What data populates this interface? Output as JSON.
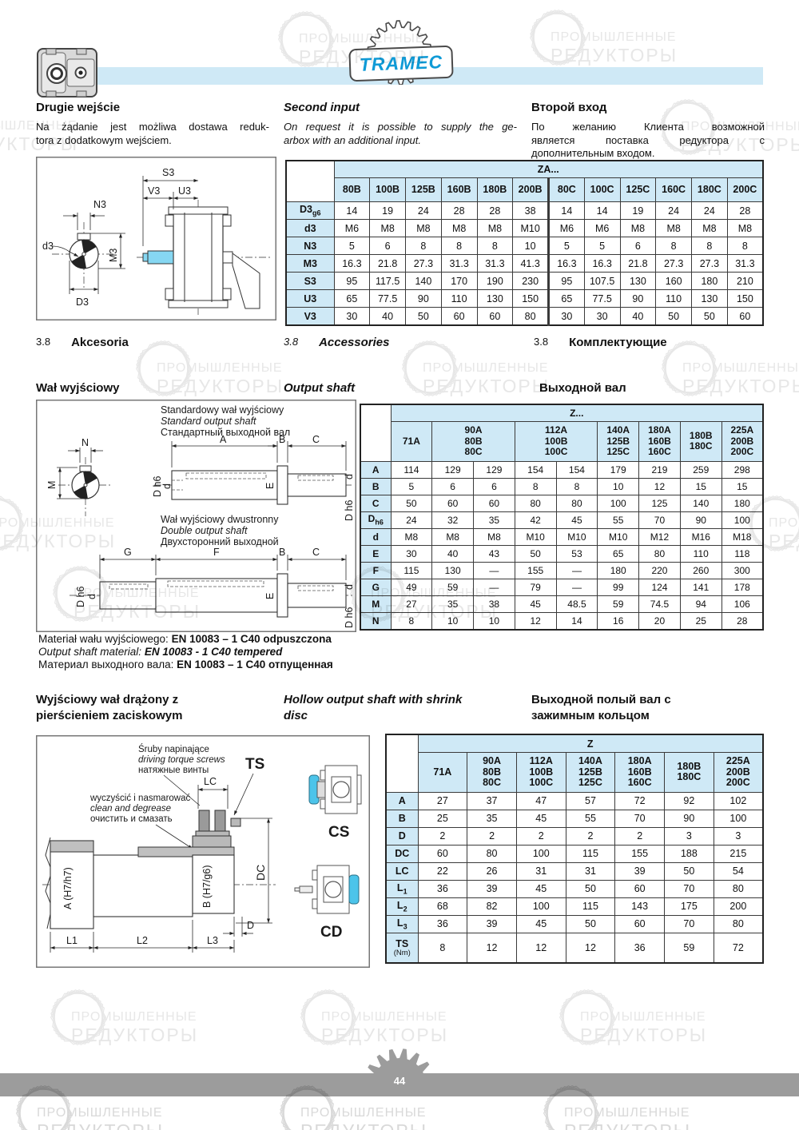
{
  "brand": {
    "logo_text": "TRAMEC"
  },
  "watermark": {
    "line1": "ПРОМЫШЛЕННЫЕ",
    "line2": "РЕДУКТОРЫ"
  },
  "footer": {
    "page_number": "44"
  },
  "intro": {
    "pl": {
      "title": "Drugie wejście",
      "lines": [
        "Na żądanie jest możliwa dostawa reduk-",
        "tora z dodatkowym wejściem."
      ]
    },
    "en": {
      "title": "Second input",
      "lines": [
        "On request it is possible to supply the ge-",
        "arbox with an additional input."
      ]
    },
    "ru": {
      "title": "Второй вход",
      "lines": [
        "По желанию Клиента возможной",
        "является поставка редуктора с",
        "дополнительным входом."
      ]
    }
  },
  "accessories_section": {
    "number": "3.8",
    "pl": "Akcesoria",
    "en": "Accessories",
    "ru": "Комплектующие"
  },
  "output_shaft_section": {
    "pl": "Wał wyjściowy",
    "en": "Output shaft",
    "ru": "Выходной вал"
  },
  "hollow_section": {
    "pl": [
      "Wyjściowy wał drążony z",
      "pierścieniem zaciskowym"
    ],
    "en": [
      "Hollow output shaft with shrink",
      "disc"
    ],
    "ru": [
      "Выходной полый вал с",
      "зажимным кольцом"
    ]
  },
  "material": {
    "pl": {
      "prefix": "Materiał wału wyjściowego: ",
      "value": "EN 10083 – 1 C40 odpuszczona"
    },
    "en": {
      "prefix": "Output shaft material: ",
      "value": "EN 10083 - 1 C40 tempered"
    },
    "ru": {
      "prefix": "Материал выходного вала: ",
      "value": "EN 10083 – 1 C40 отпущенная"
    }
  },
  "drawing_second_input": {
    "labels": {
      "s3": "S3",
      "v3": "V3",
      "u3": "U3",
      "n3": "N3",
      "d3": "d3",
      "m3": "M3",
      "D3cap": "D3"
    }
  },
  "drawing_output_shaft": {
    "standard_caption": [
      "Standardowy wał wyjściowy",
      "Standard output shaft",
      "Стандартный выходной вал"
    ],
    "double_caption": [
      "Wał wyjściowy dwustronny",
      "Double output shaft",
      "Двухсторонний выходной"
    ],
    "labels": {
      "n": "N",
      "m": "M",
      "a": "A",
      "b": "B",
      "c": "C",
      "dh6": "D h6",
      "d": "d",
      "e": "E",
      "f": "F",
      "g": "G"
    }
  },
  "drawing_hollow": {
    "screw_note": [
      "Śruby napinające",
      "driving torque screws",
      "натяжные винты"
    ],
    "clean_note": [
      "wyczyścić i nasmarować",
      "clean and degrease",
      "очистить и смазать"
    ],
    "labels": {
      "ts": "TS",
      "lc": "LC",
      "dc": "DC",
      "d": "D",
      "a": "A (H7/h7)",
      "b": "B (H7/g6)",
      "l1": "L1",
      "l2": "L2",
      "l3": "L3",
      "cs": "CS",
      "cd": "CD"
    }
  },
  "tables": {
    "za": {
      "title": "ZA...",
      "columns": [
        {
          "lines": [
            "80B"
          ]
        },
        {
          "lines": [
            "100B"
          ]
        },
        {
          "lines": [
            "125B"
          ]
        },
        {
          "lines": [
            "160B"
          ]
        },
        {
          "lines": [
            "180B"
          ]
        },
        {
          "lines": [
            "200B"
          ]
        },
        {
          "lines": [
            "80C"
          ],
          "thick": true
        },
        {
          "lines": [
            "100C"
          ]
        },
        {
          "lines": [
            "125C"
          ]
        },
        {
          "lines": [
            "160C"
          ]
        },
        {
          "lines": [
            "180C"
          ]
        },
        {
          "lines": [
            "200C"
          ]
        }
      ],
      "rows": [
        {
          "label": "D3",
          "sub": "g6",
          "values": [
            "14",
            "19",
            "24",
            "28",
            "28",
            "38",
            "14",
            "14",
            "19",
            "24",
            "24",
            "28"
          ]
        },
        {
          "label": "d3",
          "values": [
            "M6",
            "M8",
            "M8",
            "M8",
            "M8",
            "M10",
            "M6",
            "M6",
            "M8",
            "M8",
            "M8",
            "M8"
          ]
        },
        {
          "label": "N3",
          "values": [
            "5",
            "6",
            "8",
            "8",
            "8",
            "10",
            "5",
            "5",
            "6",
            "8",
            "8",
            "8"
          ]
        },
        {
          "label": "M3",
          "values": [
            "16.3",
            "21.8",
            "27.3",
            "31.3",
            "31.3",
            "41.3",
            "16.3",
            "16.3",
            "21.8",
            "27.3",
            "27.3",
            "31.3"
          ]
        },
        {
          "label": "S3",
          "values": [
            "95",
            "117.5",
            "140",
            "170",
            "190",
            "230",
            "95",
            "107.5",
            "130",
            "160",
            "180",
            "210"
          ]
        },
        {
          "label": "U3",
          "values": [
            "65",
            "77.5",
            "90",
            "110",
            "130",
            "150",
            "65",
            "77.5",
            "90",
            "110",
            "130",
            "150"
          ]
        },
        {
          "label": "V3",
          "values": [
            "30",
            "40",
            "50",
            "60",
            "60",
            "80",
            "30",
            "30",
            "40",
            "50",
            "50",
            "60"
          ]
        }
      ]
    },
    "z_output": {
      "title": "Z...",
      "columns": [
        {
          "lines": [
            "71A"
          ],
          "span": 1
        },
        {
          "lines": [
            "90A",
            "80B",
            "80C"
          ],
          "span": 2
        },
        {
          "lines": [
            "112A",
            "100B",
            "100C"
          ],
          "span": 2
        },
        {
          "lines": [
            "140A",
            "125B",
            "125C"
          ],
          "span": 1
        },
        {
          "lines": [
            "180A",
            "160B",
            "160C"
          ],
          "span": 1
        },
        {
          "lines": [
            "180B",
            "180C"
          ],
          "span": 1
        },
        {
          "lines": [
            "225A",
            "200B",
            "200C"
          ],
          "span": 1
        }
      ],
      "rows": [
        {
          "label": "A",
          "values": [
            "114",
            "129",
            "129",
            "154",
            "154",
            "179",
            "219",
            "259",
            "298"
          ]
        },
        {
          "label": "B",
          "values": [
            "5",
            "6",
            "6",
            "8",
            "8",
            "10",
            "12",
            "15",
            "15"
          ]
        },
        {
          "label": "C",
          "values": [
            "50",
            "60",
            "60",
            "80",
            "80",
            "100",
            "125",
            "140",
            "180"
          ]
        },
        {
          "label": "D",
          "sub": "h6",
          "values": [
            "24",
            "32",
            "35",
            "42",
            "45",
            "55",
            "70",
            "90",
            "100"
          ]
        },
        {
          "label": "d",
          "values": [
            "M8",
            "M8",
            "M8",
            "M10",
            "M10",
            "M10",
            "M12",
            "M16",
            "M18"
          ]
        },
        {
          "label": "E",
          "values": [
            "30",
            "40",
            "43",
            "50",
            "53",
            "65",
            "80",
            "110",
            "118"
          ]
        },
        {
          "label": "F",
          "values": [
            "115",
            "130",
            "—",
            "155",
            "—",
            "180",
            "220",
            "260",
            "300"
          ]
        },
        {
          "label": "G",
          "values": [
            "49",
            "59",
            "—",
            "79",
            "—",
            "99",
            "124",
            "141",
            "178"
          ]
        },
        {
          "label": "M",
          "values": [
            "27",
            "35",
            "38",
            "45",
            "48.5",
            "59",
            "74.5",
            "94",
            "106"
          ]
        },
        {
          "label": "N",
          "values": [
            "8",
            "10",
            "10",
            "12",
            "14",
            "16",
            "20",
            "25",
            "28"
          ]
        }
      ]
    },
    "z_hollow": {
      "title": "Z",
      "columns": [
        {
          "lines": [
            "71A"
          ]
        },
        {
          "lines": [
            "90A",
            "80B",
            "80C"
          ]
        },
        {
          "lines": [
            "112A",
            "100B",
            "100C"
          ]
        },
        {
          "lines": [
            "140A",
            "125B",
            "125C"
          ]
        },
        {
          "lines": [
            "180A",
            "160B",
            "160C"
          ]
        },
        {
          "lines": [
            "180B",
            "180C"
          ]
        },
        {
          "lines": [
            "225A",
            "200B",
            "200C"
          ]
        }
      ],
      "rows": [
        {
          "label": "A",
          "values": [
            "27",
            "37",
            "47",
            "57",
            "72",
            "92",
            "102"
          ]
        },
        {
          "label": "B",
          "values": [
            "25",
            "35",
            "45",
            "55",
            "70",
            "90",
            "100"
          ]
        },
        {
          "label": "D",
          "values": [
            "2",
            "2",
            "2",
            "2",
            "2",
            "3",
            "3"
          ]
        },
        {
          "label": "DC",
          "values": [
            "60",
            "80",
            "100",
            "115",
            "155",
            "188",
            "215"
          ]
        },
        {
          "label": "LC",
          "values": [
            "22",
            "26",
            "31",
            "31",
            "39",
            "50",
            "54"
          ]
        },
        {
          "label": "L",
          "sub": "1",
          "values": [
            "36",
            "39",
            "45",
            "50",
            "60",
            "70",
            "80"
          ]
        },
        {
          "label": "L",
          "sub": "2",
          "values": [
            "68",
            "82",
            "100",
            "115",
            "143",
            "175",
            "200"
          ]
        },
        {
          "label": "L",
          "sub": "3",
          "values": [
            "36",
            "39",
            "45",
            "50",
            "60",
            "70",
            "80"
          ]
        },
        {
          "label": "TS",
          "sub2": "(Nm)",
          "tall": true,
          "values": [
            "8",
            "12",
            "12",
            "12",
            "36",
            "59",
            "72"
          ]
        }
      ]
    }
  }
}
